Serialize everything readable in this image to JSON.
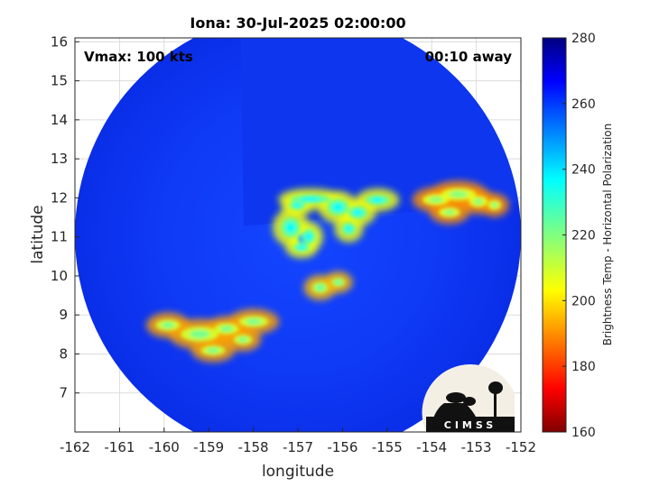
{
  "chart_data": {
    "type": "heatmap",
    "title": "Iona: 30-Jul-2025 02:00:00",
    "xlabel": "longitude",
    "ylabel": "latitude",
    "xlim": [
      -162,
      -152
    ],
    "ylim": [
      6,
      16.1
    ],
    "xticks": [
      -162,
      -161,
      -160,
      -159,
      -158,
      -157,
      -156,
      -155,
      -154,
      -153,
      -152
    ],
    "yticks": [
      7,
      8,
      9,
      10,
      11,
      12,
      13,
      14,
      15,
      16
    ],
    "grid": true,
    "annotations": {
      "vmax": "Vmax: 100 kts",
      "time_away": "00:10 away"
    },
    "colorbar": {
      "label": "Brightness Temp - Horizontal Polarization",
      "min": 160,
      "max": 280,
      "ticks": [
        160,
        180,
        200,
        220,
        240,
        260,
        280
      ],
      "colormap": "jet"
    },
    "swath": {
      "center_lon": -157,
      "center_lat": 11.05,
      "radius_deg": 5
    },
    "features": [
      {
        "name": "eyewall core",
        "lon": -156.85,
        "lat": 10.95,
        "temp": 185
      },
      {
        "name": "inner eyewall ring",
        "lon": -157.0,
        "lat": 11.1,
        "temp": 205
      },
      {
        "name": "northern band",
        "lon": -155.9,
        "lat": 11.9,
        "temp": 205
      },
      {
        "name": "northeast band",
        "lon": -153.4,
        "lat": 12.0,
        "temp": 220
      },
      {
        "name": "southwest band",
        "lon": -158.8,
        "lat": 8.6,
        "temp": 218
      },
      {
        "name": "south fragment",
        "lon": -156.3,
        "lat": 9.7,
        "temp": 215
      }
    ],
    "logo": "CIMSS"
  }
}
